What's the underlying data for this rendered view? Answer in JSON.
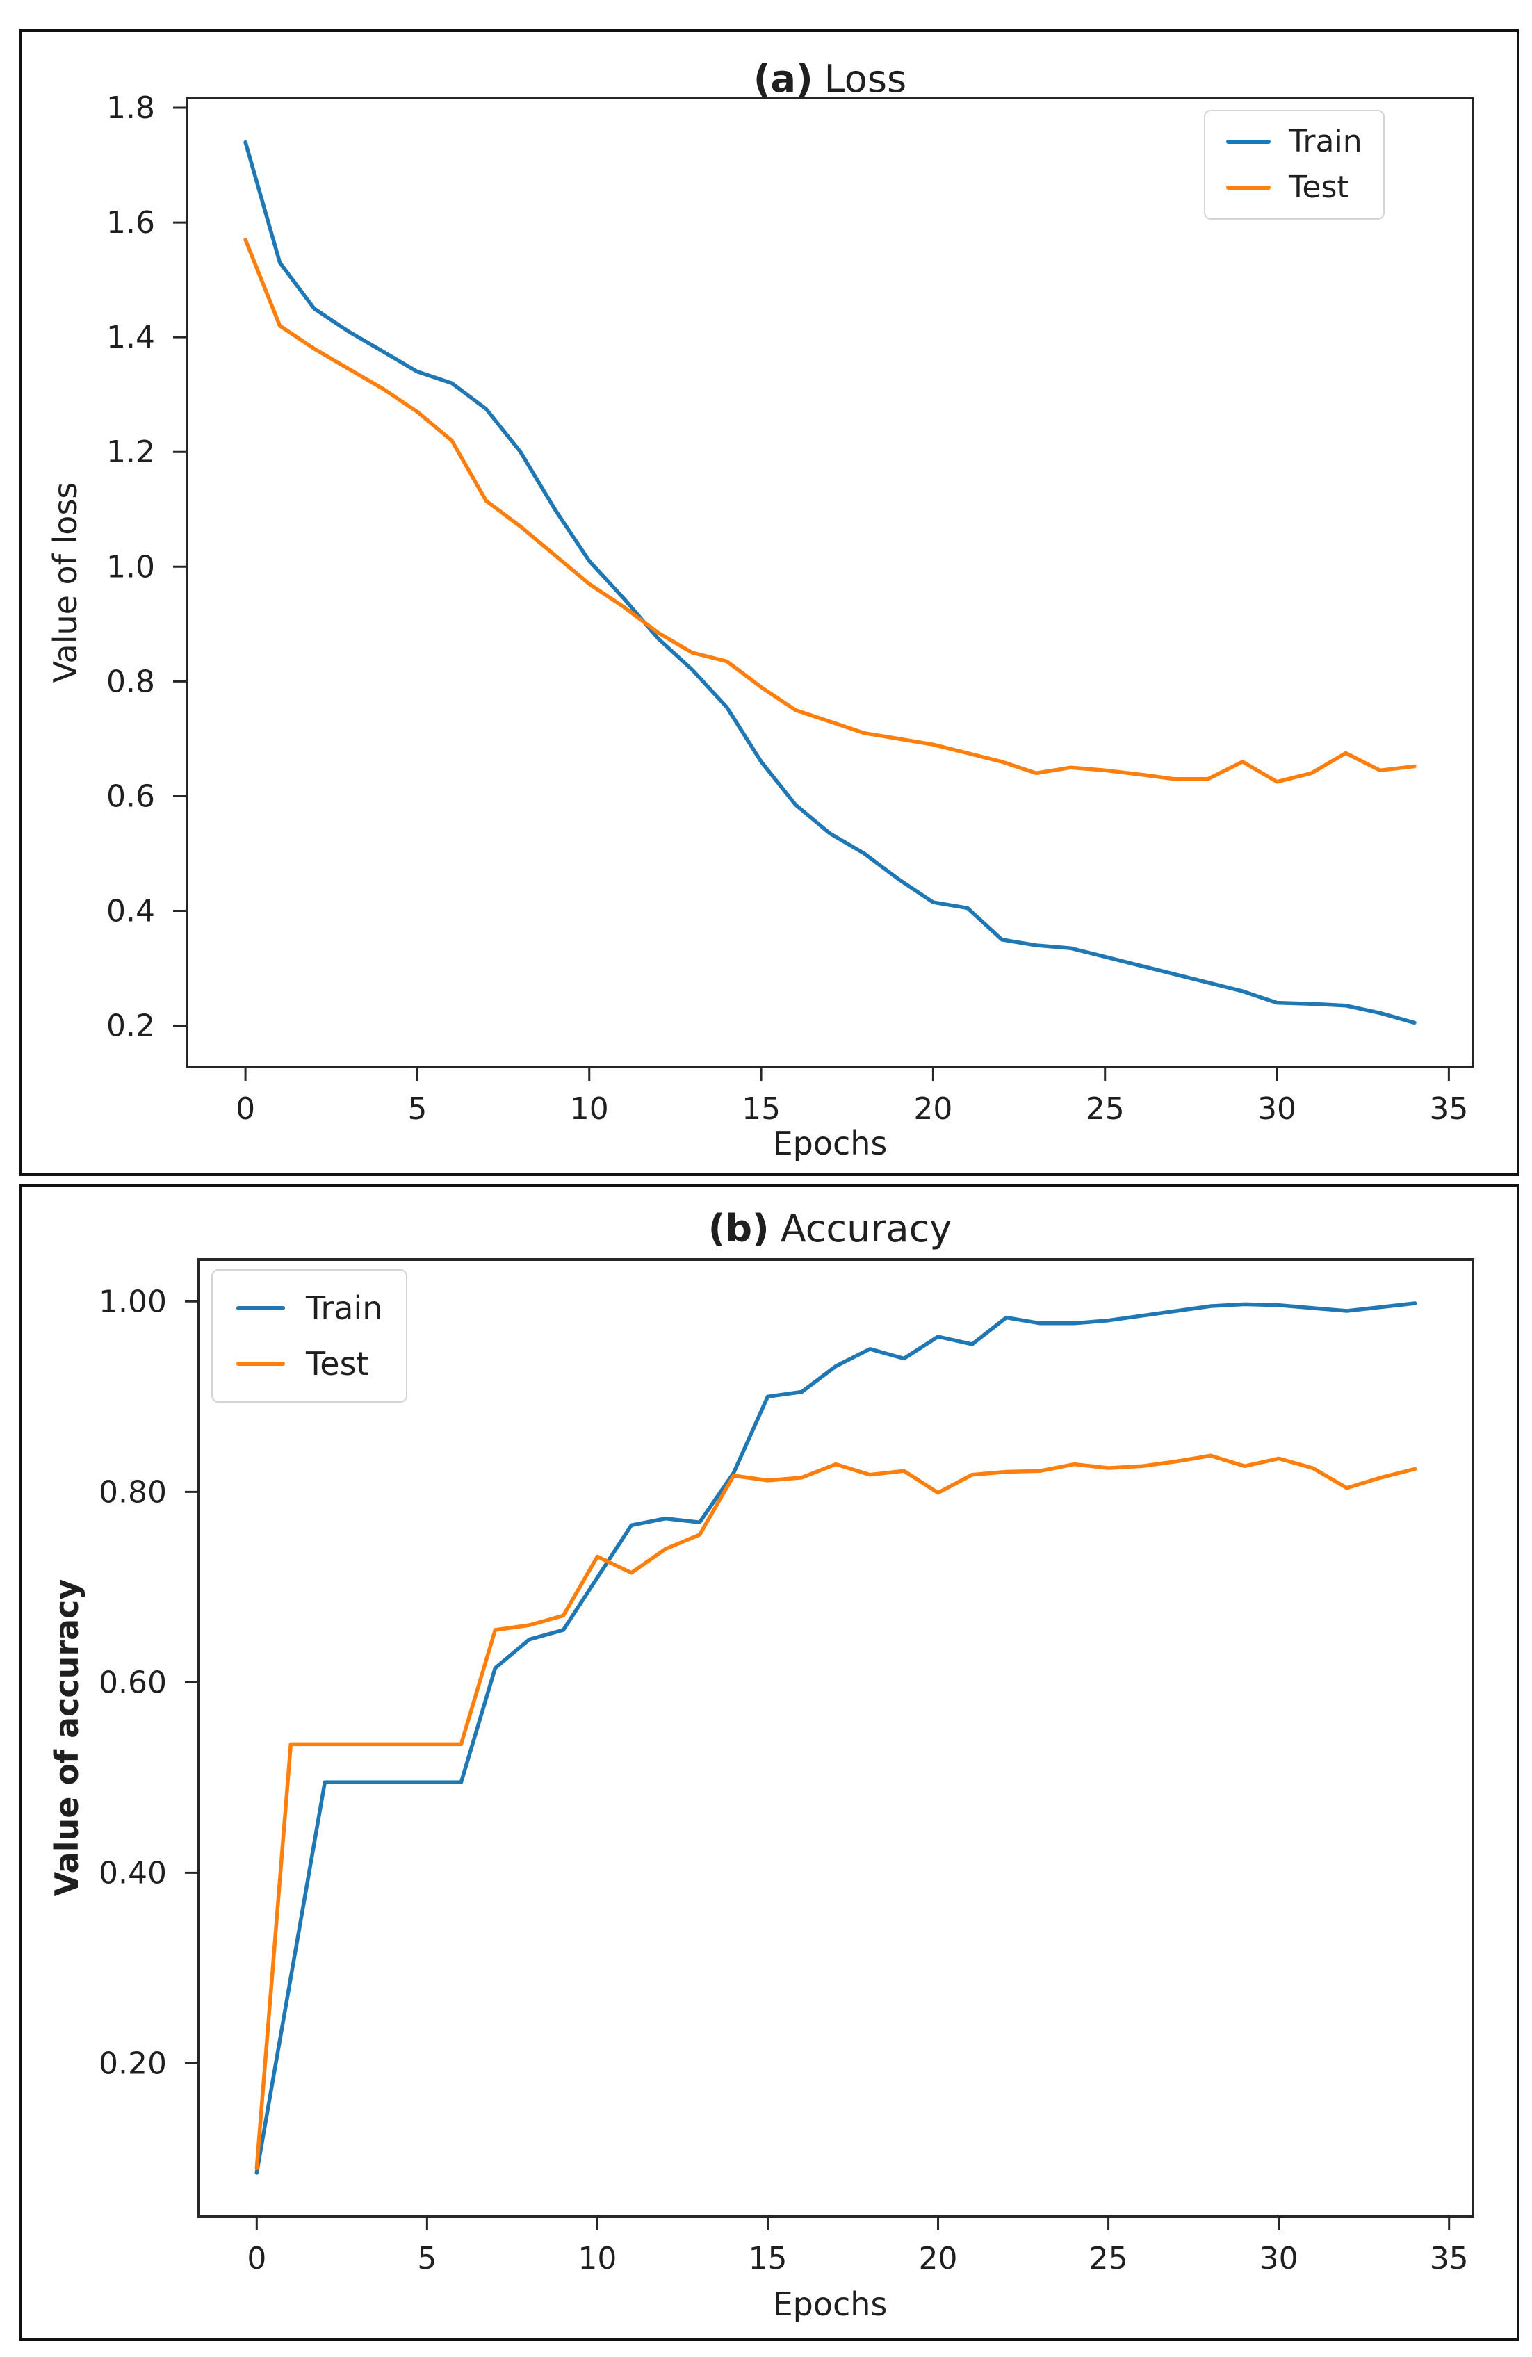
{
  "page": {
    "background": "#ffffff",
    "accent_colors": {
      "train": "#1f77b4",
      "test": "#ff7f0e"
    }
  },
  "chart_data": [
    {
      "type": "line",
      "title": "(a) Loss",
      "title_prefix": "(a)",
      "title_rest": "Loss",
      "xlabel": "Epochs",
      "ylabel": "Value of loss",
      "ylabel_bold": false,
      "legend_position": "upper right",
      "grid": false,
      "xlim": [
        -1.7,
        35.7
      ],
      "ylim": [
        0.128,
        1.817
      ],
      "xticks": [
        0,
        5,
        10,
        15,
        20,
        25,
        30,
        35
      ],
      "xtick_labels": [
        "0",
        "5",
        "10",
        "15",
        "20",
        "25",
        "30",
        "35"
      ],
      "yticks": [
        1.8,
        1.6,
        1.4,
        1.2,
        1.0,
        0.8,
        0.6,
        0.4,
        0.2
      ],
      "ytick_labels": [
        "1.8",
        "1.6",
        "1.4",
        "1.2",
        "1.0",
        "0.8",
        "0.6",
        "0.4",
        "0.2"
      ],
      "x": [
        0,
        1,
        2,
        3,
        4,
        5,
        6,
        7,
        8,
        9,
        10,
        11,
        12,
        13,
        14,
        15,
        16,
        17,
        18,
        19,
        20,
        21,
        22,
        23,
        24,
        25,
        26,
        27,
        28,
        29,
        30,
        31,
        32,
        33,
        34
      ],
      "series": [
        {
          "name": "Train",
          "color": "#1f77b4",
          "values": [
            1.74,
            1.53,
            1.45,
            1.41,
            1.375,
            1.34,
            1.32,
            1.275,
            1.2,
            1.1,
            1.01,
            0.945,
            0.875,
            0.82,
            0.755,
            0.66,
            0.585,
            0.535,
            0.5,
            0.455,
            0.415,
            0.405,
            0.35,
            0.34,
            0.335,
            0.32,
            0.305,
            0.29,
            0.275,
            0.26,
            0.24,
            0.238,
            0.235,
            0.222,
            0.205
          ]
        },
        {
          "name": "Test",
          "color": "#ff7f0e",
          "values": [
            1.57,
            1.42,
            1.38,
            1.345,
            1.31,
            1.27,
            1.22,
            1.115,
            1.07,
            1.02,
            0.97,
            0.93,
            0.885,
            0.85,
            0.835,
            0.79,
            0.75,
            0.73,
            0.71,
            0.7,
            0.69,
            0.675,
            0.66,
            0.64,
            0.65,
            0.645,
            0.638,
            0.63,
            0.63,
            0.66,
            0.625,
            0.64,
            0.675,
            0.645,
            0.652
          ]
        }
      ]
    },
    {
      "type": "line",
      "title": "(b) Accuracy",
      "title_prefix": "(b)",
      "title_rest": "Accuracy",
      "xlabel": "Epochs",
      "ylabel": "Value of accuracy",
      "ylabel_bold": true,
      "legend_position": "upper left",
      "grid": false,
      "xlim": [
        -1.7,
        35.7
      ],
      "ylim": [
        0.039,
        1.044
      ],
      "xticks": [
        0,
        5,
        10,
        15,
        20,
        25,
        30,
        35
      ],
      "xtick_labels": [
        "0",
        "5",
        "10",
        "15",
        "20",
        "25",
        "30",
        "35"
      ],
      "yticks": [
        1.0,
        0.8,
        0.6,
        0.4,
        0.2
      ],
      "ytick_labels": [
        "1.00",
        "0.80",
        "0.60",
        "0.40",
        "0.20"
      ],
      "x": [
        0,
        1,
        2,
        3,
        4,
        5,
        6,
        7,
        8,
        9,
        10,
        11,
        12,
        13,
        14,
        15,
        16,
        17,
        18,
        19,
        20,
        21,
        22,
        23,
        24,
        25,
        26,
        27,
        28,
        29,
        30,
        31,
        32,
        33,
        34
      ],
      "series": [
        {
          "name": "Train",
          "color": "#1f77b4",
          "values": [
            0.085,
            0.29,
            0.495,
            0.495,
            0.495,
            0.495,
            0.495,
            0.615,
            0.645,
            0.655,
            0.71,
            0.765,
            0.772,
            0.768,
            0.82,
            0.9,
            0.905,
            0.932,
            0.95,
            0.94,
            0.963,
            0.955,
            0.983,
            0.977,
            0.977,
            0.98,
            0.985,
            0.99,
            0.995,
            0.997,
            0.996,
            0.993,
            0.99,
            0.994,
            0.998
          ]
        },
        {
          "name": "Test",
          "color": "#ff7f0e",
          "values": [
            0.09,
            0.535,
            0.535,
            0.535,
            0.535,
            0.535,
            0.535,
            0.655,
            0.66,
            0.67,
            0.732,
            0.715,
            0.74,
            0.755,
            0.817,
            0.812,
            0.815,
            0.829,
            0.818,
            0.822,
            0.799,
            0.818,
            0.821,
            0.822,
            0.829,
            0.825,
            0.827,
            0.832,
            0.838,
            0.827,
            0.835,
            0.825,
            0.804,
            0.815,
            0.824
          ]
        }
      ]
    }
  ]
}
